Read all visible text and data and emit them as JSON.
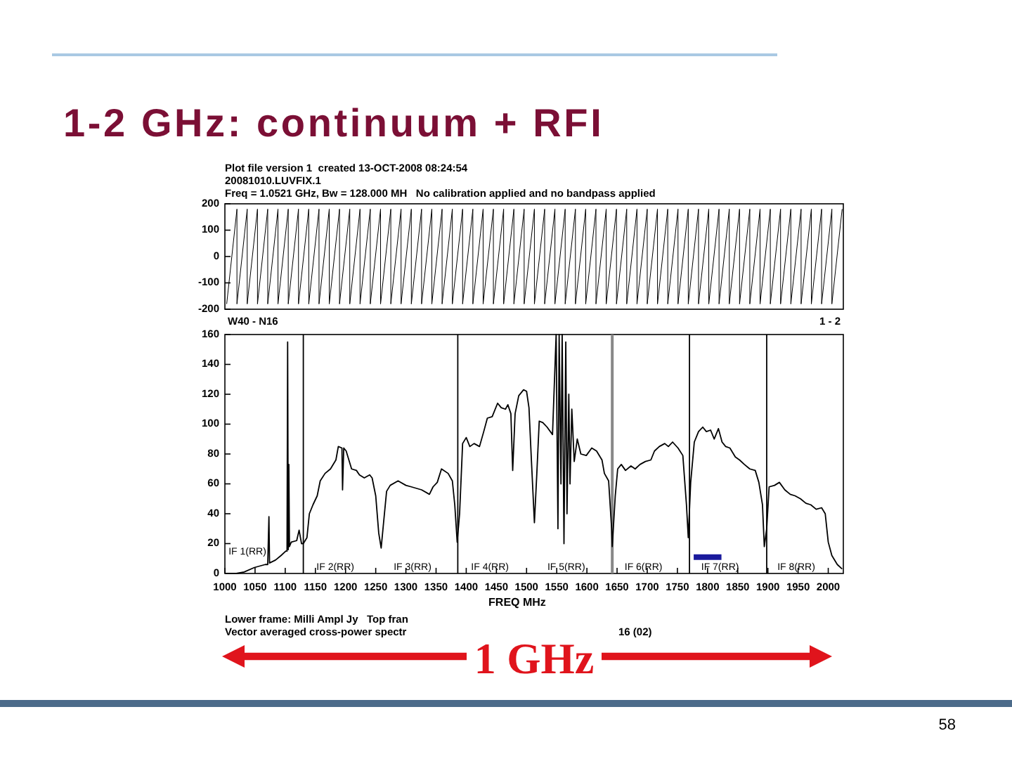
{
  "chart_data": [
    {
      "type": "line",
      "title": "1-2 GHz: continuum + RFI",
      "annotations": [
        "Plot file version 1  created 13-OCT-2008 08:24:54",
        "20081010.LUVFIX.1",
        "Freq = 1.0521 GHz, Bw = 128.000 MH   No calibration applied and no bandpass applied"
      ],
      "xlim": [
        1000,
        2025
      ],
      "ylim": [
        -200,
        200
      ],
      "yticks": [
        -200,
        -100,
        0,
        100,
        200
      ],
      "tick_labels": "y",
      "series": [
        {
          "color": "#000000",
          "x": [
            1003,
            1020,
            1020,
            1037,
            1037,
            1054,
            1054,
            1071,
            1071,
            1088,
            1088,
            1105,
            1105,
            1122,
            1122,
            1139,
            1139,
            1156,
            1156,
            1173,
            1173,
            1190,
            1190,
            1207,
            1207,
            1224,
            1224,
            1241,
            1241,
            1258,
            1258,
            1275,
            1275,
            1292,
            1292,
            1309,
            1309,
            1326,
            1326,
            1343,
            1343,
            1360,
            1360,
            1377,
            1377,
            1394,
            1394,
            1411,
            1411,
            1428,
            1428,
            1445,
            1445,
            1462,
            1462,
            1479,
            1479,
            1496,
            1496,
            1513,
            1513,
            1530,
            1530,
            1547,
            1547,
            1564,
            1564,
            1581,
            1581,
            1598,
            1598,
            1615,
            1615,
            1632,
            1632,
            1649,
            1649,
            1666,
            1666,
            1683,
            1683,
            1700,
            1700,
            1717,
            1717,
            1734,
            1734,
            1751,
            1751,
            1768,
            1768,
            1785,
            1785,
            1802,
            1802,
            1819,
            1819,
            1836,
            1836,
            1853,
            1853,
            1870,
            1870,
            1887,
            1887,
            1904,
            1904,
            1921,
            1921,
            1938,
            1938,
            1955,
            1955,
            1972,
            1972,
            1989,
            1989,
            2006,
            2006,
            2023
          ],
          "values": [
            -180,
            180,
            -180,
            180,
            -180,
            180,
            -180,
            180,
            -180,
            180,
            -180,
            180,
            -180,
            180,
            -180,
            180,
            -180,
            180,
            -180,
            180,
            -180,
            180,
            -180,
            180,
            -180,
            180,
            -180,
            180,
            -180,
            180,
            -180,
            180,
            -180,
            180,
            -180,
            180,
            -180,
            180,
            -180,
            180,
            -180,
            180,
            -180,
            180,
            -180,
            180,
            -180,
            180,
            -180,
            180,
            -180,
            180,
            -180,
            180,
            -180,
            180,
            -180,
            180,
            -180,
            180,
            -180,
            180,
            -180,
            180,
            -180,
            180,
            -180,
            180,
            -180,
            180,
            -180,
            180,
            -180,
            180,
            -180,
            180,
            -180,
            180,
            -180,
            180,
            -180,
            180,
            -180,
            180,
            -180,
            180,
            -180,
            180,
            -180,
            180,
            -180,
            180,
            -180,
            180,
            -180,
            180,
            -180,
            180,
            -180,
            180,
            -180,
            180,
            -180,
            180,
            -180,
            180,
            -180,
            180,
            -180,
            180,
            -180,
            180,
            -180,
            180,
            -180,
            180,
            -180,
            180,
            -180,
            180
          ]
        }
      ]
    },
    {
      "type": "line",
      "xlabel": "FREQ MHz",
      "annotations": [
        "W40 - N16",
        "1 - 2",
        "IF 1(RR)",
        "IF 2(RR)",
        "IF 3(RR)",
        "IF 4(RR)",
        "IF 5(RR)",
        "IF 6(RR)",
        "IF 7(RR)",
        "IF 8(RR)",
        "Lower frame: Milli Ampl Jy   Top fran",
        "Vector averaged cross-power spectr",
        "16 (02)",
        "1 GHz",
        "58"
      ],
      "xlim": [
        1000,
        2025
      ],
      "xticks": [
        1000,
        1050,
        1100,
        1150,
        1200,
        1250,
        1300,
        1350,
        1400,
        1450,
        1500,
        1550,
        1600,
        1650,
        1700,
        1750,
        1800,
        1850,
        1900,
        1950,
        2000
      ],
      "ylim": [
        0,
        160
      ],
      "yticks": [
        0,
        20,
        40,
        60,
        80,
        100,
        120,
        140,
        160
      ],
      "ref_lines": [
        {
          "axis": "x",
          "value": 1130,
          "color": "#000000"
        },
        {
          "axis": "x",
          "value": 1386,
          "color": "#000000"
        },
        {
          "axis": "x",
          "value": 1642,
          "color": "#888888"
        },
        {
          "axis": "x",
          "value": 1770,
          "color": "#000000"
        },
        {
          "axis": "x",
          "value": 1898,
          "color": "#000000"
        }
      ],
      "series": [
        {
          "color": "#000000",
          "x": [
            1002,
            1019,
            1032,
            1049,
            1067,
            1071,
            1073,
            1074,
            1084,
            1093,
            1101,
            1103,
            1104,
            1105,
            1106,
            1107,
            1110,
            1119,
            1123,
            1127,
            1130,
            1136,
            1140,
            1146,
            1153,
            1158,
            1166,
            1175,
            1184,
            1188,
            1194,
            1195,
            1197,
            1201,
            1210,
            1218,
            1223,
            1231,
            1240,
            1244,
            1250,
            1255,
            1259,
            1263,
            1268,
            1274,
            1287,
            1300,
            1309,
            1326,
            1339,
            1345,
            1352,
            1359,
            1370,
            1377,
            1381,
            1385,
            1389,
            1394,
            1400,
            1406,
            1413,
            1422,
            1429,
            1435,
            1443,
            1452,
            1458,
            1465,
            1469,
            1474,
            1477,
            1481,
            1487,
            1495,
            1500,
            1504,
            1508,
            1513,
            1517,
            1521,
            1527,
            1534,
            1543,
            1549,
            1552,
            1554,
            1557,
            1559,
            1562,
            1565,
            1567,
            1570,
            1572,
            1575,
            1579,
            1584,
            1590,
            1599,
            1608,
            1616,
            1625,
            1629,
            1636,
            1641,
            1642,
            1647,
            1651,
            1657,
            1664,
            1673,
            1680,
            1688,
            1697,
            1706,
            1712,
            1720,
            1729,
            1735,
            1742,
            1751,
            1759,
            1765,
            1768,
            1772,
            1778,
            1785,
            1792,
            1798,
            1805,
            1811,
            1818,
            1824,
            1830,
            1837,
            1846,
            1853,
            1861,
            1870,
            1879,
            1885,
            1891,
            1894,
            1898,
            1902,
            1911,
            1919,
            1928,
            1937,
            1945,
            1954,
            1963,
            1971,
            1980,
            1989,
            1995,
            2000,
            2006,
            2015,
            2023
          ],
          "values": [
            0,
            0,
            1,
            4,
            6,
            6,
            38,
            7,
            9,
            12,
            15,
            15,
            155,
            16,
            73,
            18,
            21,
            22,
            29,
            20,
            20,
            24,
            40,
            46,
            52,
            62,
            67,
            70,
            76,
            85,
            84,
            56,
            84,
            82,
            70,
            69,
            66,
            64,
            66,
            64,
            52,
            27,
            17,
            34,
            55,
            59,
            62,
            59,
            58,
            56,
            53,
            58,
            61,
            70,
            67,
            62,
            46,
            21,
            40,
            87,
            91,
            85,
            87,
            85,
            95,
            104,
            105,
            114,
            111,
            110,
            113,
            107,
            69,
            107,
            119,
            123,
            122,
            111,
            76,
            34,
            67,
            102,
            101,
            98,
            93,
            160,
            30,
            160,
            60,
            160,
            20,
            155,
            40,
            120,
            60,
            110,
            75,
            90,
            80,
            79,
            84,
            82,
            76,
            67,
            62,
            30,
            18,
            52,
            70,
            73,
            69,
            72,
            70,
            73,
            75,
            76,
            82,
            85,
            87,
            85,
            88,
            84,
            79,
            46,
            24,
            61,
            88,
            95,
            98,
            95,
            96,
            90,
            97,
            88,
            85,
            84,
            78,
            76,
            73,
            70,
            69,
            61,
            46,
            18,
            30,
            58,
            59,
            61,
            56,
            53,
            52,
            50,
            47,
            46,
            43,
            44,
            40,
            21,
            12,
            6,
            3
          ]
        },
        {
          "color": "#1a1a9c",
          "x": [
            1777,
            1823
          ],
          "values": [
            11,
            11
          ]
        }
      ]
    }
  ]
}
